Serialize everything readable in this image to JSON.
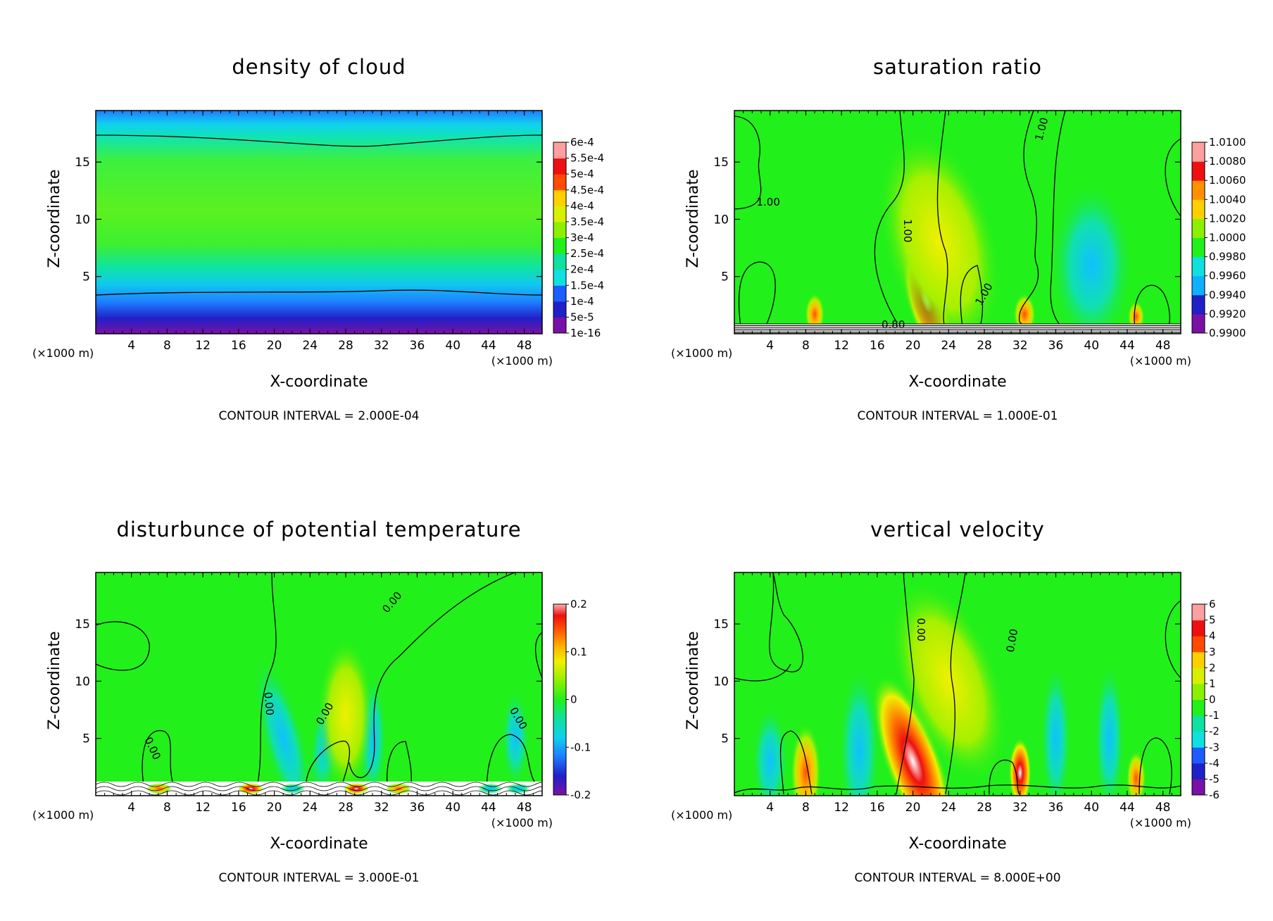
{
  "chart_data": [
    {
      "type": "heatmap",
      "title": "density of cloud",
      "xlabel": "X-coordinate",
      "ylabel": "Z-coordinate",
      "x_unit_left": "(×1000 m)",
      "x_unit_right": "(×1000 m)",
      "xticks": [
        "4",
        "8",
        "12",
        "16",
        "20",
        "24",
        "28",
        "32",
        "36",
        "40",
        "44",
        "48"
      ],
      "yticks": [
        "5",
        "10",
        "15"
      ],
      "xlim": [
        0,
        50
      ],
      "ylim": [
        0,
        19.5
      ],
      "contour_interval": "CONTOUR INTERVAL = 2.000E-04",
      "colorbar": [
        "6e-4",
        "5.5e-4",
        "5e-4",
        "4.5e-4",
        "4e-4",
        "3.5e-4",
        "3e-4",
        "2.5e-4",
        "2e-4",
        "1.5e-4",
        "1e-4",
        "5e-5",
        "1e-16"
      ],
      "contour_labels": []
    },
    {
      "type": "heatmap",
      "title": "saturation ratio",
      "xlabel": "X-coordinate",
      "ylabel": "Z-coordinate",
      "x_unit_left": "(×1000 m)",
      "x_unit_right": "(×1000 m)",
      "xticks": [
        "4",
        "8",
        "12",
        "16",
        "20",
        "24",
        "28",
        "32",
        "36",
        "40",
        "44",
        "48"
      ],
      "yticks": [
        "5",
        "10",
        "15"
      ],
      "xlim": [
        0,
        50
      ],
      "ylim": [
        0,
        19.5
      ],
      "contour_interval": "CONTOUR INTERVAL = 1.000E-01",
      "colorbar": [
        "1.0100",
        "1.0080",
        "1.0060",
        "1.0040",
        "1.0020",
        "1.0000",
        "0.9980",
        "0.9960",
        "0.9940",
        "0.9920",
        "0.9900"
      ],
      "contour_labels": [
        {
          "text": "1.00",
          "x": 3.8,
          "y": 11.2,
          "angle": 0
        },
        {
          "text": "1.00",
          "x": 19.0,
          "y": 9.0,
          "angle": 90
        },
        {
          "text": "1.00",
          "x": 34.8,
          "y": 17.8,
          "angle": -75
        },
        {
          "text": "1.00",
          "x": 28.3,
          "y": 3.3,
          "angle": -60
        },
        {
          "text": "0.80",
          "x": 17.8,
          "y": 0.5,
          "angle": 0
        }
      ]
    },
    {
      "type": "heatmap",
      "title": "disturbunce of potential temperature",
      "xlabel": "X-coordinate",
      "ylabel": "Z-coordinate",
      "x_unit_left": "(×1000 m)",
      "x_unit_right": "(×1000 m)",
      "xticks": [
        "4",
        "8",
        "12",
        "16",
        "20",
        "24",
        "28",
        "32",
        "36",
        "40",
        "44",
        "48"
      ],
      "yticks": [
        "5",
        "10",
        "15"
      ],
      "xlim": [
        0,
        50
      ],
      "ylim": [
        0,
        19.5
      ],
      "contour_interval": "CONTOUR INTERVAL = 3.000E-01",
      "colorbar": [
        "0.2",
        "0.1",
        "0",
        "-0.1",
        "-0.2"
      ],
      "contour_labels": [
        {
          "text": "0.00",
          "x": 6.0,
          "y": 4.0,
          "angle": 65
        },
        {
          "text": "0.00",
          "x": 19.0,
          "y": 8.0,
          "angle": 85
        },
        {
          "text": "0.00",
          "x": 26.0,
          "y": 7.0,
          "angle": -60
        },
        {
          "text": "0.00",
          "x": 33.5,
          "y": 16.7,
          "angle": -50
        },
        {
          "text": "0.00",
          "x": 47.0,
          "y": 6.6,
          "angle": 60
        }
      ]
    },
    {
      "type": "heatmap",
      "title": "vertical velocity",
      "xlabel": "X-coordinate",
      "ylabel": "Z-coordinate",
      "x_unit_left": "(×1000 m)",
      "x_unit_right": "(×1000 m)",
      "xticks": [
        "4",
        "8",
        "12",
        "16",
        "20",
        "24",
        "28",
        "32",
        "36",
        "40",
        "44",
        "48"
      ],
      "yticks": [
        "5",
        "10",
        "15"
      ],
      "xlim": [
        0,
        50
      ],
      "ylim": [
        0,
        19.5
      ],
      "contour_interval": "CONTOUR INTERVAL = 8.000E+00",
      "colorbar": [
        "6",
        "5",
        "4",
        "3",
        "2",
        "1",
        "0",
        "-1",
        "-2",
        "-3",
        "-4",
        "-5",
        "-6"
      ],
      "contour_labels": [
        {
          "text": "0.00",
          "x": 20.5,
          "y": 14.5,
          "angle": 90
        },
        {
          "text": "0.00",
          "x": 31.5,
          "y": 13.5,
          "angle": -80
        }
      ]
    }
  ]
}
